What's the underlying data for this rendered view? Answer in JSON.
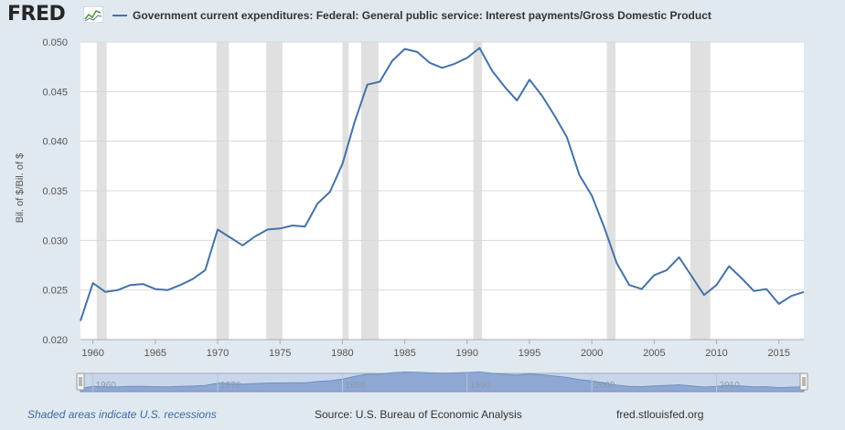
{
  "header": {
    "logo_text": "FRED",
    "logo_mark": "fred-chart-logo-icon",
    "legend_label": "Government current expenditures: Federal: General public service: Interest payments/Gross Domestic Product"
  },
  "footer": {
    "recession_note": "Shaded areas indicate U.S. recessions",
    "source": "Source: U.S. Bureau of Economic Analysis",
    "url": "fred.stlouisfed.org"
  },
  "colors": {
    "background": "#e1e9f0",
    "series": "#4572a7",
    "recession": "#e0e0e0",
    "grid": "#d8d8d8"
  },
  "chart_data": {
    "type": "line",
    "title": "",
    "xlabel": "",
    "ylabel": "Bil. of $/Bil. of $",
    "xlim": [
      1959,
      2017
    ],
    "ylim": [
      0.02,
      0.05
    ],
    "grid": true,
    "legend_position": "top",
    "x_ticks": [
      1960,
      1965,
      1970,
      1975,
      1980,
      1985,
      1990,
      1995,
      2000,
      2005,
      2010,
      2015
    ],
    "x_tick_labels": [
      "1960",
      "1965",
      "1970",
      "1975",
      "1980",
      "1985",
      "1990",
      "1995",
      "2000",
      "2005",
      "2010",
      "2015"
    ],
    "y_ticks": [
      0.02,
      0.025,
      0.03,
      0.035,
      0.04,
      0.045,
      0.05
    ],
    "y_tick_labels": [
      "0.020",
      "0.025",
      "0.030",
      "0.035",
      "0.040",
      "0.045",
      "0.050"
    ],
    "recessions": [
      [
        1960.3,
        1961.1
      ],
      [
        1969.9,
        1970.9
      ],
      [
        1973.9,
        1975.2
      ],
      [
        1980.0,
        1980.5
      ],
      [
        1981.5,
        1982.9
      ],
      [
        1990.5,
        1991.2
      ],
      [
        2001.2,
        2001.9
      ],
      [
        2007.9,
        2009.5
      ]
    ],
    "series": [
      {
        "name": "Government current expenditures: Federal: General public service: Interest payments/Gross Domestic Product",
        "x": [
          1959,
          1960,
          1961,
          1962,
          1963,
          1964,
          1965,
          1966,
          1967,
          1968,
          1969,
          1970,
          1971,
          1972,
          1973,
          1974,
          1975,
          1976,
          1977,
          1978,
          1979,
          1980,
          1981,
          1982,
          1983,
          1984,
          1985,
          1986,
          1987,
          1988,
          1989,
          1990,
          1991,
          1992,
          1993,
          1994,
          1995,
          1996,
          1997,
          1998,
          1999,
          2000,
          2001,
          2002,
          2003,
          2004,
          2005,
          2006,
          2007,
          2008,
          2009,
          2010,
          2011,
          2012,
          2013,
          2014,
          2015,
          2016,
          2017
        ],
        "values": [
          0.0219,
          0.0257,
          0.0248,
          0.025,
          0.0255,
          0.0256,
          0.0251,
          0.025,
          0.0255,
          0.0261,
          0.027,
          0.0311,
          0.0303,
          0.0295,
          0.0304,
          0.0311,
          0.0312,
          0.0315,
          0.0314,
          0.0337,
          0.0349,
          0.0377,
          0.042,
          0.0457,
          0.046,
          0.0481,
          0.0493,
          0.049,
          0.0479,
          0.0474,
          0.0478,
          0.0484,
          0.0494,
          0.0471,
          0.0455,
          0.0441,
          0.0462,
          0.0446,
          0.0426,
          0.0404,
          0.0366,
          0.0345,
          0.0313,
          0.0277,
          0.0255,
          0.0251,
          0.0265,
          0.027,
          0.0283,
          0.0264,
          0.0245,
          0.0255,
          0.0274,
          0.0262,
          0.0249,
          0.0251,
          0.0236,
          0.0244,
          0.0248
        ]
      }
    ],
    "navigator": {
      "tick_labels": [
        "1960",
        "1970",
        "1980",
        "1990",
        "2000",
        "2010"
      ],
      "tick_years": [
        1960,
        1970,
        1980,
        1990,
        2000,
        2010
      ]
    }
  }
}
